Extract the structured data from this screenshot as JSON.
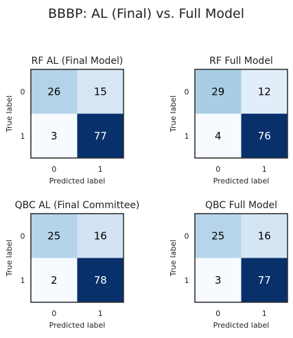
{
  "figure": {
    "suptitle": "BBBP: AL (Final) vs. Full Model"
  },
  "colors": {
    "cmap_low": "#f7fbff",
    "cmap_high": "#08306b",
    "text_dark": "#000000",
    "text_light": "#ffffff",
    "frame": "#333333"
  },
  "chart_data": [
    {
      "type": "heatmap",
      "title": "RF AL (Final Model)",
      "xlabel": "Predicted label",
      "ylabel": "True label",
      "x_ticks": [
        "0",
        "1"
      ],
      "y_ticks": [
        "0",
        "1"
      ],
      "values": [
        [
          26,
          15
        ],
        [
          3,
          77
        ]
      ],
      "colormap": "Blues",
      "colorbar": false
    },
    {
      "type": "heatmap",
      "title": "RF Full Model",
      "xlabel": "Predicted label",
      "ylabel": "True label",
      "x_ticks": [
        "0",
        "1"
      ],
      "y_ticks": [
        "0",
        "1"
      ],
      "values": [
        [
          29,
          12
        ],
        [
          4,
          76
        ]
      ],
      "colormap": "Blues",
      "colorbar": false
    },
    {
      "type": "heatmap",
      "title": "QBC AL (Final Committee)",
      "xlabel": "Predicted label",
      "ylabel": "True label",
      "x_ticks": [
        "0",
        "1"
      ],
      "y_ticks": [
        "0",
        "1"
      ],
      "values": [
        [
          25,
          16
        ],
        [
          2,
          78
        ]
      ],
      "colormap": "Blues",
      "colorbar": false
    },
    {
      "type": "heatmap",
      "title": "QBC Full Model",
      "xlabel": "Predicted label",
      "ylabel": "True label",
      "x_ticks": [
        "0",
        "1"
      ],
      "y_ticks": [
        "0",
        "1"
      ],
      "values": [
        [
          25,
          16
        ],
        [
          3,
          77
        ]
      ],
      "colormap": "Blues",
      "colorbar": false
    }
  ]
}
